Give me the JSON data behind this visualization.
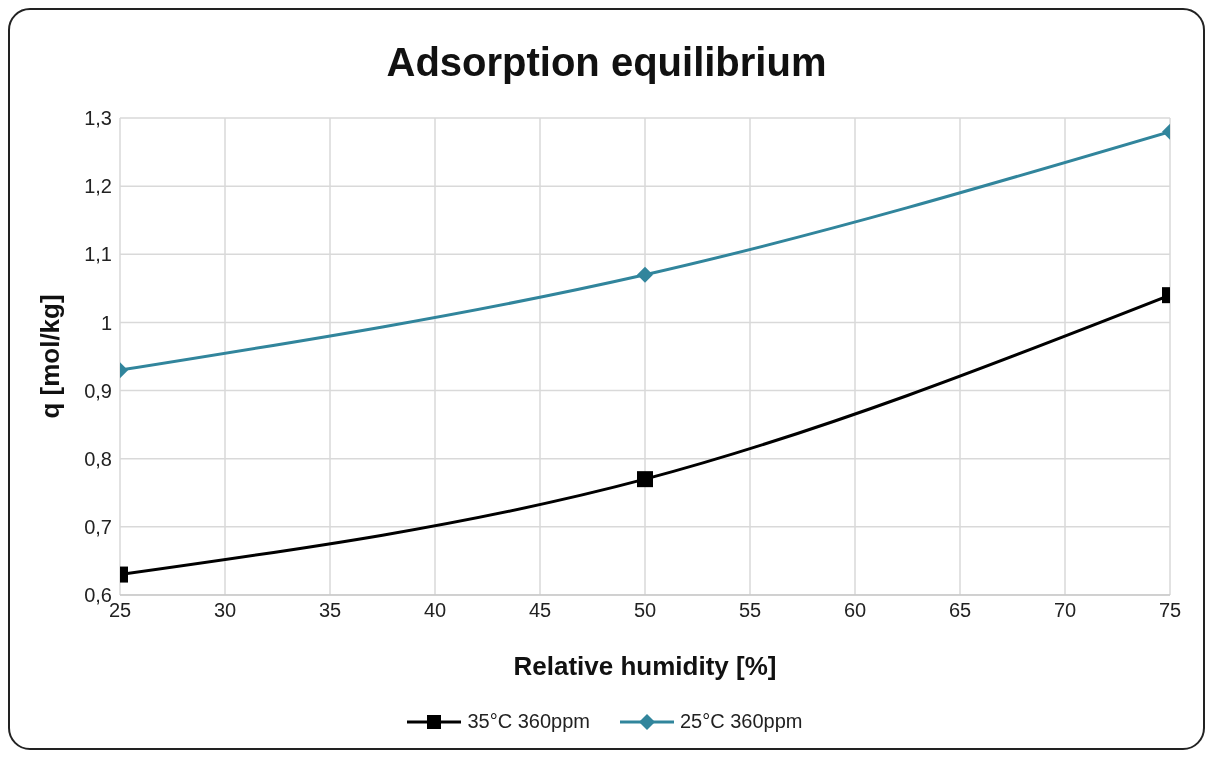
{
  "chart_data": {
    "type": "line",
    "title": "Adsorption equilibrium",
    "xlabel": "Relative humidity [%]",
    "ylabel": "q [mol/kg]",
    "x": [
      25,
      50,
      75
    ],
    "series": [
      {
        "name": "35°C 360ppm",
        "color": "#000000",
        "marker": "square",
        "values": [
          0.63,
          0.77,
          1.04
        ]
      },
      {
        "name": "25°C 360ppm",
        "color": "#31859c",
        "marker": "diamond",
        "values": [
          0.93,
          1.07,
          1.28
        ]
      }
    ],
    "xlim": [
      25,
      75
    ],
    "xticks": [
      25,
      30,
      35,
      40,
      45,
      50,
      55,
      60,
      65,
      70,
      75
    ],
    "ylim": [
      0.6,
      1.3
    ],
    "yticks": [
      {
        "value": 0.6,
        "label": "0,6"
      },
      {
        "value": 0.7,
        "label": "0,7"
      },
      {
        "value": 0.8,
        "label": "0,8"
      },
      {
        "value": 0.9,
        "label": "0,9"
      },
      1,
      {
        "value": 1.1,
        "label": "1,1"
      },
      {
        "value": 1.2,
        "label": "1,2"
      },
      {
        "value": 1.3,
        "label": "1,3"
      }
    ],
    "grid": true,
    "legend": "bottom"
  }
}
